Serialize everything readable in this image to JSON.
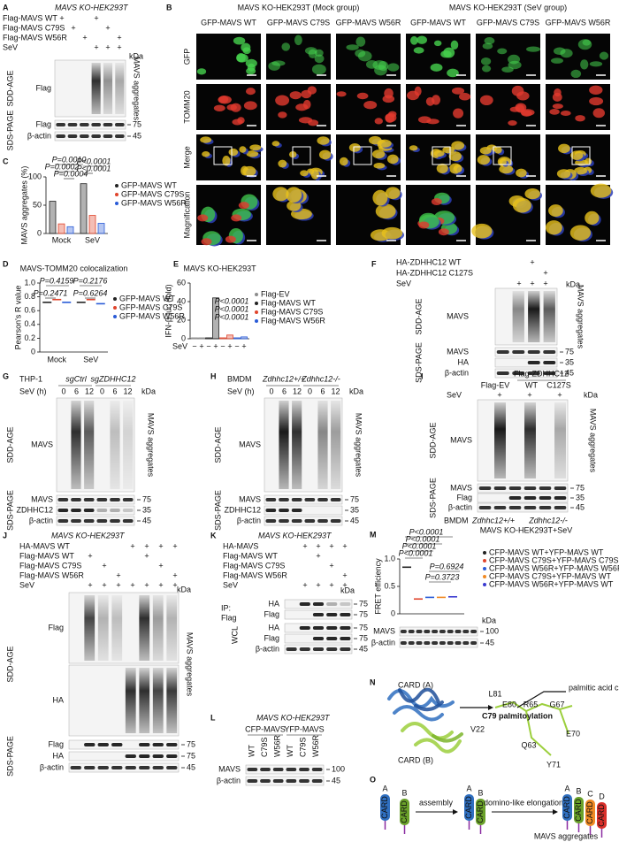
{
  "panels": {
    "A": {
      "letter": "A",
      "title": "MAVS KO-HEK293T",
      "rows": [
        "Flag-MAVS WT",
        "Flag-MAVS C79S",
        "Flag-MAVS W56R",
        "SeV"
      ],
      "matrix": [
        [
          "+",
          null,
          null,
          "+",
          null,
          null
        ],
        [
          null,
          "+",
          null,
          null,
          "+",
          null
        ],
        [
          null,
          null,
          "+",
          null,
          null,
          "+"
        ],
        [
          null,
          null,
          null,
          "+",
          "+",
          "+"
        ]
      ],
      "kda": "kDa",
      "gels": [
        "SDD-AGE",
        "SDS-PAGE"
      ],
      "bands": [
        "Flag",
        "Flag",
        "β-actin"
      ],
      "side": "MAVS aggregates",
      "markers": [
        "75",
        "45"
      ]
    },
    "B": {
      "letter": "B",
      "groups": [
        "MAVS KO-HEK293T (Mock group)",
        "MAVS KO-HEK293T (SeV group)"
      ],
      "columns": [
        "GFP-MAVS WT",
        "GFP-MAVS C79S",
        "GFP-MAVS W56R",
        "GFP-MAVS WT",
        "GFP-MAVS C79S",
        "GFP-MAVS W56R"
      ],
      "rows": [
        "GFP",
        "TOMM20",
        "Merge",
        "Magnification"
      ]
    },
    "C": {
      "letter": "C"
    },
    "D": {
      "letter": "D"
    },
    "E": {
      "letter": "E"
    },
    "F": {
      "letter": "F",
      "rows": [
        "HA-ZDHHC12 WT",
        "HA-ZDHHC12 C127S",
        "SeV"
      ],
      "matrix": [
        [
          null,
          null,
          "+",
          null
        ],
        [
          null,
          null,
          null,
          "+"
        ],
        [
          null,
          "+",
          "+",
          "+"
        ]
      ],
      "kda": "kDa",
      "gels": [
        "SDD-AGE",
        "SDS-PAGE"
      ],
      "bands": [
        "MAVS",
        "MAVS",
        "HA",
        "β-actin"
      ],
      "side": "MAVS aggregates",
      "markers": [
        "75",
        "35",
        "45"
      ]
    },
    "G": {
      "letter": "G",
      "cell": "THP-1",
      "groups": [
        "sgCtrl",
        "sgZDHHC12"
      ],
      "time_label": "SeV (h)",
      "times": [
        "0",
        "6",
        "12",
        "0",
        "6",
        "12"
      ],
      "kda": "kDa",
      "gels": [
        "SDD-AGE",
        "SDS-PAGE"
      ],
      "bands": [
        "MAVS",
        "MAVS",
        "ZDHHC12",
        "β-actin"
      ],
      "side": "MAVS aggregates",
      "markers": [
        "75",
        "35",
        "45"
      ]
    },
    "H": {
      "letter": "H",
      "cell": "BMDM",
      "groups": [
        "Zdhhc12+/+",
        "Zdhhc12-/-"
      ],
      "time_label": "SeV (h)",
      "times": [
        "0",
        "6",
        "12",
        "0",
        "6",
        "12"
      ],
      "kda": "kDa",
      "gels": [
        "SDD-AGE",
        "SDS-PAGE"
      ],
      "bands": [
        "MAVS",
        "MAVS",
        "ZDHHC12",
        "β-actin"
      ],
      "side": "MAVS aggregates",
      "markers": [
        "75",
        "35",
        "45"
      ]
    },
    "I": {
      "letter": "I",
      "group": "Flag-ZDHHC12",
      "lanes": [
        "Flag-EV",
        "WT",
        "C127S"
      ],
      "rows": [
        "SeV"
      ],
      "matrix": [
        [
          null,
          "+",
          null,
          "+",
          null,
          "+"
        ]
      ],
      "kda": "kDa",
      "gels": [
        "SDD-AGE",
        "SDS-PAGE"
      ],
      "bands": [
        "MAVS",
        "MAVS",
        "Flag",
        "β-actin"
      ],
      "side": "MAVS aggregates",
      "markers": [
        "75",
        "35",
        "45"
      ],
      "footer": [
        "BMDM",
        "Zdhhc12+/+",
        "Zdhhc12-/-",
        "MAVS KO-HEK293T+SeV"
      ]
    },
    "J": {
      "letter": "J",
      "title": "MAVS KO-HEK293T",
      "rows": [
        "HA-MAVS WT",
        "Flag-MAVS WT",
        "Flag-MAVS C79S",
        "Flag-MAVS W56R",
        "SeV"
      ],
      "matrix": [
        [
          null,
          null,
          null,
          null,
          "+",
          "+",
          "+",
          "+"
        ],
        [
          null,
          "+",
          null,
          null,
          null,
          "+",
          null,
          null
        ],
        [
          null,
          null,
          "+",
          null,
          null,
          null,
          "+",
          null
        ],
        [
          null,
          null,
          null,
          "+",
          null,
          null,
          null,
          "+"
        ],
        [
          null,
          "+",
          "+",
          "+",
          "+",
          "+",
          "+",
          "+"
        ]
      ],
      "kda": "kDa",
      "gels": [
        "SDD-AGE",
        "SDS-PAGE"
      ],
      "bands": [
        "Flag",
        "HA",
        "Flag",
        "HA",
        "β-actin"
      ],
      "side": "MAVS aggregates",
      "markers": [
        "75",
        "75",
        "45"
      ]
    },
    "K": {
      "letter": "K",
      "title": "MAVS KO-HEK293T",
      "rows": [
        "HA-MAVS",
        "Flag-MAVS WT",
        "Flag-MAVS C79S",
        "Flag-MAVS W56R",
        "SeV"
      ],
      "matrix": [
        [
          null,
          "+",
          "+",
          "+",
          "+"
        ],
        [
          null,
          null,
          "+",
          null,
          null
        ],
        [
          null,
          null,
          null,
          "+",
          null
        ],
        [
          null,
          null,
          null,
          null,
          "+"
        ],
        [
          null,
          "+",
          "+",
          "+",
          "+"
        ]
      ],
      "kda": "kDa",
      "ip": "IP:",
      "ip_antibody": "Flag",
      "wcl": "WCL",
      "bands": [
        "HA",
        "Flag",
        "HA",
        "Flag",
        "β-actin"
      ],
      "markers": [
        "75",
        "75",
        "75",
        "75",
        "45"
      ]
    },
    "L": {
      "letter": "L",
      "title": "MAVS KO-HEK293T",
      "groups": [
        "CFP-MAVS",
        "YFP-MAVS"
      ],
      "lanes": [
        "WT",
        "C79S",
        "W56R",
        "WT",
        "C79S",
        "W56R"
      ],
      "bands": [
        "MAVS",
        "β-actin"
      ],
      "markers": [
        "100",
        "45"
      ]
    },
    "M": {
      "letter": "M",
      "kda": "kDa",
      "bands": [
        "MAVS",
        "β-actin"
      ],
      "markers": [
        "100",
        "45"
      ]
    },
    "N": {
      "letter": "N",
      "labels": [
        "CARD (A)",
        "CARD (B)",
        "L81",
        "E80",
        "R65",
        "G67",
        "V22",
        "Q63",
        "E70",
        "Y71"
      ],
      "site": "C79 palmitoylation",
      "chain": "palmitic acid chain"
    },
    "O": {
      "letter": "O",
      "domain": "CARD",
      "units": [
        "A",
        "B",
        "C",
        "D"
      ],
      "steps": [
        "assembly",
        "domino-like elongation"
      ],
      "product": "MAVS aggregates"
    }
  },
  "chart_data": [
    {
      "type": "bar",
      "y_label": "MAVS aggregates (%)",
      "categories": [
        "Mock",
        "SeV"
      ],
      "series": [
        {
          "name": "GFP-MAVS WT",
          "color": "#222222",
          "values": [
            57,
            88
          ]
        },
        {
          "name": "GFP-MAVS C79S",
          "color": "#e0442c",
          "values": [
            17,
            32
          ]
        },
        {
          "name": "GFP-MAVS W56R",
          "color": "#2a5bd7",
          "values": [
            12,
            18
          ]
        }
      ],
      "ylim": [
        0,
        100
      ],
      "yticks": [
        0,
        50,
        100
      ],
      "annotations": [
        "P=0.0010",
        "P=0.0002",
        "P=0.0004",
        "P<0.0001",
        "P<0.0001"
      ]
    },
    {
      "type": "dot",
      "title": "MAVS-TOMM20 colocalization",
      "y_label": "Pearson's R value",
      "categories": [
        "Mock",
        "SeV"
      ],
      "series": [
        {
          "name": "GFP-MAVS WT",
          "color": "#222222",
          "values": [
            0.72,
            0.72
          ]
        },
        {
          "name": "GFP-MAVS C79S",
          "color": "#e0442c",
          "values": [
            0.76,
            0.76
          ]
        },
        {
          "name": "GFP-MAVS W56R",
          "color": "#2a5bd7",
          "values": [
            0.72,
            0.7
          ]
        }
      ],
      "ylim": [
        0,
        1
      ],
      "yticks": [
        0,
        0.2,
        0.4,
        0.6,
        0.8,
        {
          "value": 1,
          "label": "1.0"
        }
      ],
      "annotations": [
        "P=0.4159",
        "P=0.2471",
        "P=0.2176",
        "P=0.6264"
      ]
    },
    {
      "type": "bar",
      "title": "MAVS KO-HEK293T",
      "y_label": "IFN-β-luc (fold)",
      "x_label": "SeV",
      "categories": [
        "−",
        "+"
      ],
      "series": [
        {
          "name": "Flag-EV",
          "color": "#8c8c8c",
          "values": [
            1,
            1
          ]
        },
        {
          "name": "Flag-MAVS WT",
          "color": "#222222",
          "values": [
            1,
            44
          ]
        },
        {
          "name": "Flag-MAVS C79S",
          "color": "#e0442c",
          "values": [
            1,
            4
          ]
        },
        {
          "name": "Flag-MAVS W56R",
          "color": "#2a5bd7",
          "values": [
            1,
            2
          ]
        }
      ],
      "ylim": [
        0,
        60
      ],
      "yticks": [
        0,
        20,
        40,
        60
      ],
      "annotations": [
        "P<0.0001",
        "P<0.0001",
        "P<0.0001"
      ]
    },
    {
      "type": "dot",
      "y_label": "FRET efficiency",
      "series": [
        {
          "name": "CFP-MAVS WT+YFP-MAVS WT",
          "color": "#222222",
          "values": [
            0.85
          ]
        },
        {
          "name": "CFP-MAVS C79S+YFP-MAVS C79S",
          "color": "#e0442c",
          "values": [
            0.27
          ]
        },
        {
          "name": "CFP-MAVS W56R+YFP-MAVS W56R",
          "color": "#2a5bd7",
          "values": [
            0.3
          ]
        },
        {
          "name": "CFP-MAVS C79S+YFP-MAVS WT",
          "color": "#f08a24",
          "values": [
            0.3
          ]
        },
        {
          "name": "CFP-MAVS W56R+YFP-MAVS WT",
          "color": "#3a3ad0",
          "values": [
            0.31
          ]
        }
      ],
      "ylim": [
        0,
        1
      ],
      "yticks": [
        0,
        0.5,
        {
          "value": 1,
          "label": "1.0"
        }
      ],
      "annotations": [
        "P<0.0001",
        "P<0.0001",
        "P<0.0001",
        "P<0.0001",
        "P=0.6924",
        "P=0.3723"
      ]
    }
  ]
}
